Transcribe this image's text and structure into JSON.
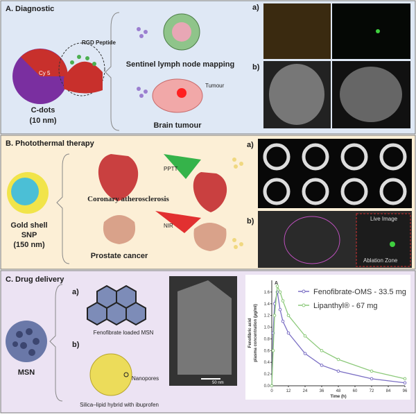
{
  "panel_a": {
    "title": "A. Diagnostic",
    "peptide_label": "RGD Peptide",
    "dye_label": "Cy 5",
    "name": "C-dots",
    "size": "(10 nm)",
    "applications": [
      "Sentinel lymph node mapping",
      "Brain tumour"
    ],
    "tumour_label": "Tumour",
    "image_labels": [
      "a)",
      "b)"
    ]
  },
  "panel_b": {
    "title": "B. Photothermal therapy",
    "name_lines": [
      "Gold shell",
      "SNP",
      "(150 nm)"
    ],
    "applications": [
      "Coronary atherosclerosis",
      "Prostate cancer"
    ],
    "treatments": [
      "PPTT",
      "NIR"
    ],
    "image_labels": [
      "a)",
      "b)"
    ],
    "mri_labels": [
      "Live Image",
      "Ablation Zone"
    ]
  },
  "panel_c": {
    "title": "C. Drug delivery",
    "name": "MSN",
    "items": [
      {
        "label": "a)",
        "caption": "Fenofibrate loaded MSN"
      },
      {
        "label": "b)",
        "caption": "Silica–lipid hybrid with ibuprofen"
      }
    ],
    "nanopores_label": "Nanopores",
    "scale_bar": "50 nm",
    "chart": {
      "type": "line",
      "panel_label": "A",
      "x_label": "Time (h)",
      "y_label": [
        "Fenofibric acid",
        "plasma concentration (µg/ml)"
      ],
      "x": [
        0,
        1,
        2,
        4,
        6,
        8,
        12,
        24,
        36,
        48,
        72,
        96
      ],
      "series": [
        {
          "name": "Fenofibrate-OMS - 33.5 mg",
          "color": "#7b6fc4",
          "values": [
            0,
            0.9,
            1.4,
            1.6,
            1.3,
            1.1,
            0.9,
            0.55,
            0.35,
            0.25,
            0.12,
            0.05
          ]
        },
        {
          "name": "Lipanthyl® - 67 mg",
          "color": "#8cc97a",
          "values": [
            0,
            0.6,
            1.2,
            1.7,
            1.6,
            1.45,
            1.2,
            0.85,
            0.6,
            0.45,
            0.25,
            0.12
          ]
        }
      ],
      "xlim": [
        0,
        96
      ],
      "xticks": [
        0,
        12,
        24,
        36,
        48,
        60,
        72,
        84,
        96
      ],
      "ylim": [
        0,
        1.8
      ],
      "yticks": [
        {
          "value": 0,
          "label": "0.0"
        },
        {
          "value": 0.2,
          "label": "0.2"
        },
        {
          "value": 0.4,
          "label": "0.4"
        },
        {
          "value": 0.6,
          "label": "0.6"
        },
        {
          "value": 0.8,
          "label": "0.8"
        },
        {
          "value": 1,
          "label": "1.0"
        },
        {
          "value": 1.2,
          "label": "1.2"
        },
        {
          "value": 1.4,
          "label": "1.4"
        },
        {
          "value": 1.6,
          "label": "1.6"
        }
      ]
    }
  }
}
